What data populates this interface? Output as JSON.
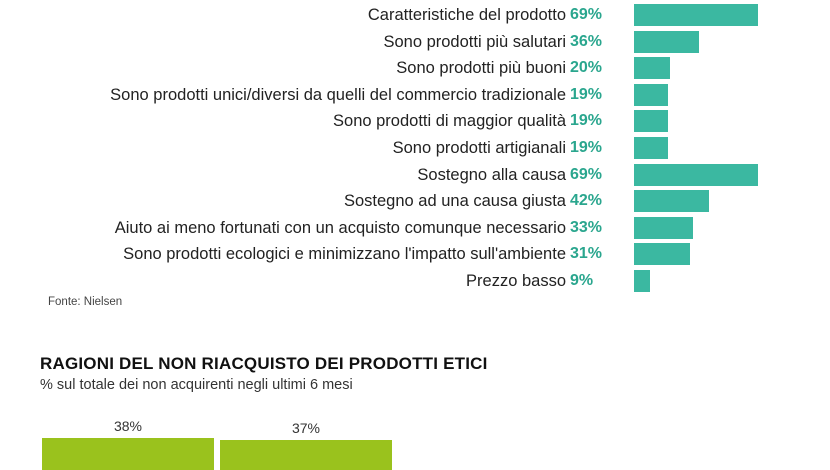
{
  "chart_data": [
    {
      "type": "bar",
      "orientation": "horizontal",
      "categories": [
        "Caratteristiche del prodotto",
        "Sono prodotti più salutari",
        "Sono prodotti più buoni",
        "Sono prodotti unici/diversi da quelli del commercio tradizionale",
        "Sono prodotti di maggior qualità",
        "Sono prodotti artigianali",
        "Sostegno alla causa",
        "Sostegno ad una causa giusta",
        "Aiuto ai meno fortunati con un acquisto comunque necessario",
        "Sono prodotti ecologici e minimizzano l'impatto sull'ambiente",
        "Prezzo basso"
      ],
      "values": [
        69,
        36,
        20,
        19,
        19,
        19,
        69,
        42,
        33,
        31,
        9
      ],
      "value_labels": [
        "69%",
        "36%",
        "20%",
        "19%",
        "19%",
        "19%",
        "69%",
        "42%",
        "33%",
        "31%",
        "9%"
      ],
      "source": "Fonte: Nielsen",
      "bar_color": "#3bb8a1",
      "label_color": "#2aa68e",
      "xlim": [
        0,
        100
      ]
    },
    {
      "type": "bar",
      "orientation": "vertical",
      "title": "RAGIONI DEL NON RIACQUISTO DEI PRODOTTI ETICI",
      "subtitle": "% sul totale dei non acquirenti negli ultimi 6 mesi",
      "categories": [
        "",
        ""
      ],
      "values": [
        38,
        37
      ],
      "value_labels": [
        "38%",
        "37%"
      ],
      "bar_color": "#9ac21d"
    }
  ]
}
